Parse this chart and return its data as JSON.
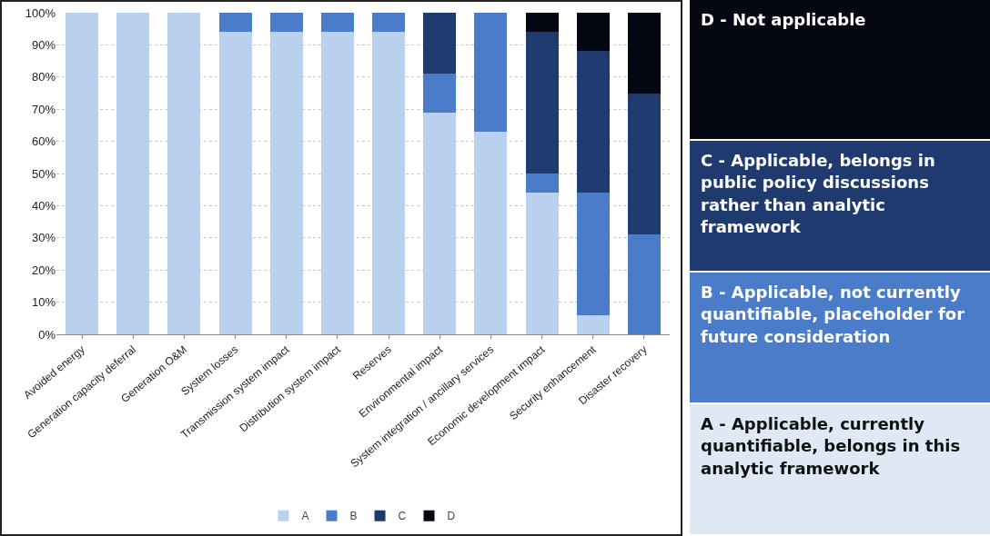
{
  "chart_data": {
    "type": "bar",
    "stacked": true,
    "categories": [
      "Avoided energy",
      "Generation capacity deferral",
      "Generation O&M",
      "System losses",
      "Transmission system impact",
      "Distribution system impact",
      "Reserves",
      "Environmental impact",
      "System integration / ancillary services",
      "Economic development impact",
      "Security enhancement",
      "Disaster recovery"
    ],
    "series": [
      {
        "name": "A",
        "color": "#b9d0ef",
        "values": [
          100,
          100,
          100,
          94,
          94,
          94,
          94,
          69,
          63,
          44,
          6,
          0
        ]
      },
      {
        "name": "B",
        "color": "#4a7cc9",
        "values": [
          0,
          0,
          0,
          6,
          6,
          6,
          6,
          12,
          37,
          6,
          38,
          31
        ]
      },
      {
        "name": "C",
        "color": "#1f3a6e",
        "values": [
          0,
          0,
          0,
          0,
          0,
          0,
          0,
          19,
          0,
          44,
          44,
          44
        ]
      },
      {
        "name": "D",
        "color": "#050812",
        "values": [
          0,
          0,
          0,
          0,
          0,
          0,
          0,
          0,
          0,
          6,
          12,
          25
        ]
      }
    ],
    "ylim": [
      0,
      100
    ],
    "yticks": [
      {
        "value": 0,
        "label": "0%"
      },
      {
        "value": 10,
        "label": "10%"
      },
      {
        "value": 20,
        "label": "20%"
      },
      {
        "value": 30,
        "label": "30%"
      },
      {
        "value": 40,
        "label": "40%"
      },
      {
        "value": 50,
        "label": "50%"
      },
      {
        "value": 60,
        "label": "60%"
      },
      {
        "value": 70,
        "label": "70%"
      },
      {
        "value": 80,
        "label": "80%"
      },
      {
        "value": 90,
        "label": "90%"
      },
      {
        "value": 100,
        "label": "100%"
      }
    ],
    "grid": "y",
    "legend": "bottom",
    "annotations": [
      "D - Not applicable",
      "C - Applicable, belongs in public policy discussions rather than analytic framework",
      "B - Applicable, not currently quantifiable, placeholder for future consideration",
      "A - Applicable, currently quantifiable, belongs in this analytic framework"
    ]
  }
}
